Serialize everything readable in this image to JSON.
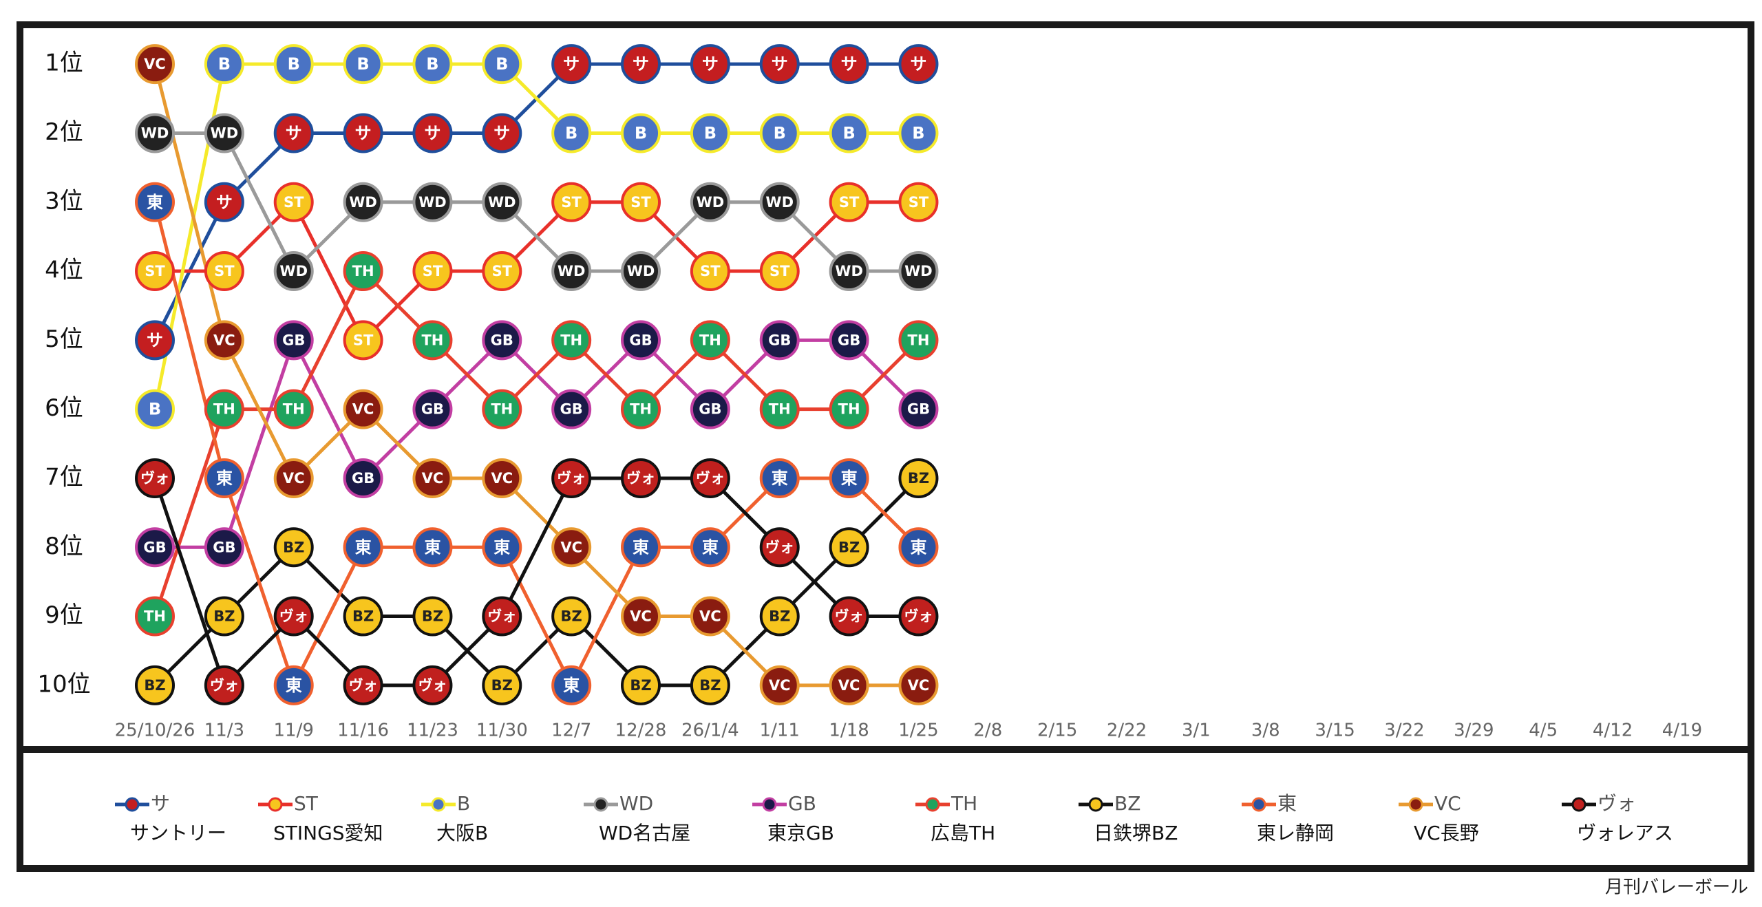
{
  "chart_data": {
    "type": "bump",
    "categories": [
      "25/10/26",
      "11/3",
      "11/9",
      "11/16",
      "11/23",
      "11/30",
      "12/7",
      "12/28",
      "26/1/4",
      "1/11",
      "1/18",
      "1/25",
      "2/8",
      "2/15",
      "2/22",
      "3/1",
      "3/8",
      "3/15",
      "3/22",
      "3/29",
      "4/5",
      "4/12",
      "4/19"
    ],
    "ylim": [
      10.5,
      0.5
    ],
    "yticks": [
      {
        "value": 1,
        "label": "1位"
      },
      {
        "value": 2,
        "label": "2位"
      },
      {
        "value": 3,
        "label": "3位"
      },
      {
        "value": 4,
        "label": "4位"
      },
      {
        "value": 5,
        "label": "5位"
      },
      {
        "value": 6,
        "label": "6位"
      },
      {
        "value": 7,
        "label": "7位"
      },
      {
        "value": 8,
        "label": "8位"
      },
      {
        "value": 9,
        "label": "9位"
      },
      {
        "value": 10,
        "label": "10位"
      }
    ],
    "series": [
      {
        "name": "サ",
        "team": "サントリー",
        "color": "#1f4e9c",
        "fill": "#c41e20",
        "label_color": "#ffffff",
        "values": [
          5,
          3,
          2,
          2,
          2,
          2,
          1,
          1,
          1,
          1,
          1,
          1,
          null,
          null,
          null,
          null,
          null,
          null,
          null,
          null,
          null,
          null,
          null
        ]
      },
      {
        "name": "ST",
        "team": "STINGS愛知",
        "color": "#e8302a",
        "fill": "#f7c51e",
        "label_color": "#ffffff",
        "values": [
          4,
          4,
          3,
          5,
          4,
          4,
          3,
          3,
          4,
          4,
          3,
          3,
          null,
          null,
          null,
          null,
          null,
          null,
          null,
          null,
          null,
          null,
          null
        ]
      },
      {
        "name": "B",
        "team": "大阪B",
        "color": "#f5ea2a",
        "fill": "#4a73c4",
        "label_color": "#ffffff",
        "values": [
          6,
          1,
          1,
          1,
          1,
          1,
          2,
          2,
          2,
          2,
          2,
          2,
          null,
          null,
          null,
          null,
          null,
          null,
          null,
          null,
          null,
          null,
          null
        ]
      },
      {
        "name": "WD",
        "team": "WD名古屋",
        "color": "#9a9a9a",
        "fill": "#222222",
        "label_color": "#ffffff",
        "values": [
          2,
          2,
          4,
          3,
          3,
          3,
          4,
          4,
          3,
          3,
          4,
          4,
          null,
          null,
          null,
          null,
          null,
          null,
          null,
          null,
          null,
          null,
          null
        ]
      },
      {
        "name": "GB",
        "team": "東京GB",
        "color": "#c23ea2",
        "fill": "#1b1a48",
        "label_color": "#ffffff",
        "values": [
          8,
          8,
          5,
          7,
          6,
          5,
          6,
          5,
          6,
          5,
          5,
          6,
          null,
          null,
          null,
          null,
          null,
          null,
          null,
          null,
          null,
          null,
          null
        ]
      },
      {
        "name": "TH",
        "team": "広島TH",
        "color": "#e8402e",
        "fill": "#1fa35e",
        "label_color": "#ffffff",
        "values": [
          9,
          6,
          6,
          4,
          5,
          6,
          5,
          6,
          5,
          6,
          6,
          5,
          null,
          null,
          null,
          null,
          null,
          null,
          null,
          null,
          null,
          null,
          null
        ]
      },
      {
        "name": "BZ",
        "team": "日鉄堺BZ",
        "color": "#111111",
        "fill": "#f7c51e",
        "label_color": "#222222",
        "values": [
          10,
          9,
          8,
          9,
          9,
          10,
          9,
          10,
          10,
          9,
          8,
          7,
          null,
          null,
          null,
          null,
          null,
          null,
          null,
          null,
          null,
          null,
          null
        ]
      },
      {
        "name": "東",
        "team": "東レ静岡",
        "color": "#f0602e",
        "fill": "#2a53a3",
        "label_color": "#ffffff",
        "values": [
          3,
          7,
          10,
          8,
          8,
          8,
          10,
          8,
          8,
          7,
          7,
          8,
          null,
          null,
          null,
          null,
          null,
          null,
          null,
          null,
          null,
          null,
          null
        ]
      },
      {
        "name": "VC",
        "team": "VC長野",
        "color": "#e89a30",
        "fill": "#8a1c10",
        "label_color": "#ffffff",
        "values": [
          1,
          5,
          7,
          6,
          7,
          7,
          8,
          9,
          9,
          10,
          10,
          10,
          null,
          null,
          null,
          null,
          null,
          null,
          null,
          null,
          null,
          null,
          null
        ]
      },
      {
        "name": "ヴォ",
        "team": "ヴォレアス",
        "color": "#111111",
        "fill": "#c0201e",
        "label_color": "#ffffff",
        "values": [
          7,
          10,
          9,
          10,
          10,
          9,
          7,
          7,
          7,
          8,
          9,
          9,
          null,
          null,
          null,
          null,
          null,
          null,
          null,
          null,
          null,
          null,
          null
        ]
      }
    ],
    "source": "月刊バレーボール"
  }
}
